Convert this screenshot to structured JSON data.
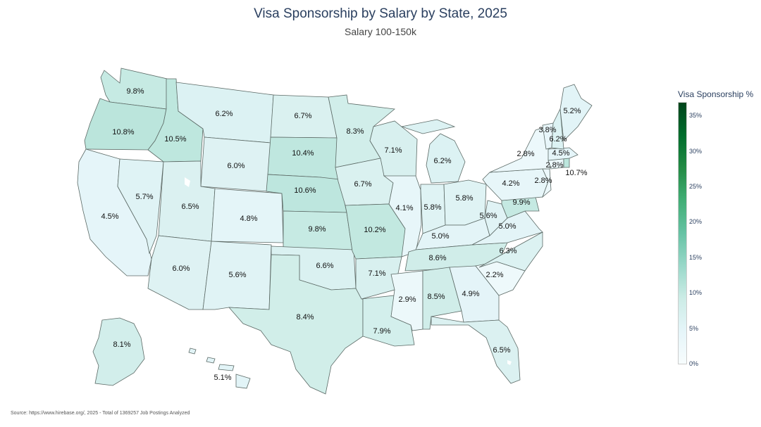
{
  "title": "Visa Sponsorship by Salary by State, 2025",
  "subtitle": "Salary 100-150k",
  "source": "Source: https://www.hirebase.org/, 2025 - Total of 1369257 Job Postings Analyzed",
  "legend": {
    "title": "Visa Sponsorship %",
    "ticks": [
      "35%",
      "30%",
      "25%",
      "20%",
      "15%",
      "10%",
      "5%",
      "0%"
    ],
    "min": 0,
    "max": 37,
    "colors": [
      "#f7fcfd",
      "#e5f5f9",
      "#ccece6",
      "#99d8c9",
      "#66c2a4",
      "#41ae76",
      "#238b45",
      "#006d2c",
      "#00441b"
    ]
  },
  "chart_data": {
    "type": "choropleth",
    "states": [
      {
        "code": "WA",
        "value": 9.8,
        "label": "9.8%"
      },
      {
        "code": "OR",
        "value": 10.8,
        "label": "10.8%"
      },
      {
        "code": "CA",
        "value": 4.5,
        "label": "4.5%"
      },
      {
        "code": "ID",
        "value": 10.5,
        "label": "10.5%"
      },
      {
        "code": "NV",
        "value": 5.7,
        "label": "5.7%"
      },
      {
        "code": "MT",
        "value": 6.2,
        "label": "6.2%"
      },
      {
        "code": "WY",
        "value": 6.0,
        "label": "6.0%"
      },
      {
        "code": "UT",
        "value": 6.5,
        "label": "6.5%"
      },
      {
        "code": "AZ",
        "value": 6.0,
        "label": "6.0%"
      },
      {
        "code": "CO",
        "value": 4.8,
        "label": "4.8%"
      },
      {
        "code": "NM",
        "value": 5.6,
        "label": "5.6%"
      },
      {
        "code": "ND",
        "value": 6.7,
        "label": "6.7%"
      },
      {
        "code": "SD",
        "value": 10.4,
        "label": "10.4%"
      },
      {
        "code": "NE",
        "value": 10.6,
        "label": "10.6%"
      },
      {
        "code": "KS",
        "value": 9.8,
        "label": "9.8%"
      },
      {
        "code": "OK",
        "value": 6.6,
        "label": "6.6%"
      },
      {
        "code": "TX",
        "value": 8.4,
        "label": "8.4%"
      },
      {
        "code": "MN",
        "value": 8.3,
        "label": "8.3%"
      },
      {
        "code": "IA",
        "value": 6.7,
        "label": "6.7%"
      },
      {
        "code": "MO",
        "value": 10.2,
        "label": "10.2%"
      },
      {
        "code": "AR",
        "value": 7.1,
        "label": "7.1%"
      },
      {
        "code": "LA",
        "value": 7.9,
        "label": "7.9%"
      },
      {
        "code": "WI",
        "value": 7.1,
        "label": "7.1%"
      },
      {
        "code": "IL",
        "value": 4.1,
        "label": "4.1%"
      },
      {
        "code": "MI",
        "value": 6.2,
        "label": "6.2%"
      },
      {
        "code": "IN",
        "value": 5.8,
        "label": "5.8%"
      },
      {
        "code": "OH",
        "value": 5.8,
        "label": "5.8%"
      },
      {
        "code": "KY",
        "value": 5.0,
        "label": "5.0%"
      },
      {
        "code": "TN",
        "value": 8.6,
        "label": "8.6%"
      },
      {
        "code": "MS",
        "value": 2.9,
        "label": "2.9%"
      },
      {
        "code": "AL",
        "value": 8.5,
        "label": "8.5%"
      },
      {
        "code": "GA",
        "value": 4.9,
        "label": "4.9%"
      },
      {
        "code": "FL",
        "value": 6.5,
        "label": "6.5%"
      },
      {
        "code": "SC",
        "value": 2.2,
        "label": "2.2%"
      },
      {
        "code": "NC",
        "value": 6.3,
        "label": "6.3%"
      },
      {
        "code": "VA",
        "value": 5.0,
        "label": "5.0%"
      },
      {
        "code": "WV",
        "value": 5.6,
        "label": "5.6%"
      },
      {
        "code": "MD",
        "value": 9.9,
        "label": "9.9%"
      },
      {
        "code": "PA",
        "value": 4.2,
        "label": "4.2%"
      },
      {
        "code": "NJ",
        "value": 2.8,
        "label": "2.8%"
      },
      {
        "code": "NY",
        "value": 2.8,
        "label": "2.8%"
      },
      {
        "code": "CT",
        "value": 2.8,
        "label": "2.8%"
      },
      {
        "code": "RI",
        "value": 10.7,
        "label": "10.7%"
      },
      {
        "code": "MA",
        "value": 4.5,
        "label": "4.5%"
      },
      {
        "code": "VT",
        "value": 3.8,
        "label": "3.8%"
      },
      {
        "code": "NH",
        "value": 6.2,
        "label": "6.2%"
      },
      {
        "code": "ME",
        "value": 5.2,
        "label": "5.2%"
      },
      {
        "code": "AK",
        "value": 8.1,
        "label": "8.1%"
      },
      {
        "code": "HI",
        "value": 5.1,
        "label": "5.1%"
      }
    ]
  }
}
